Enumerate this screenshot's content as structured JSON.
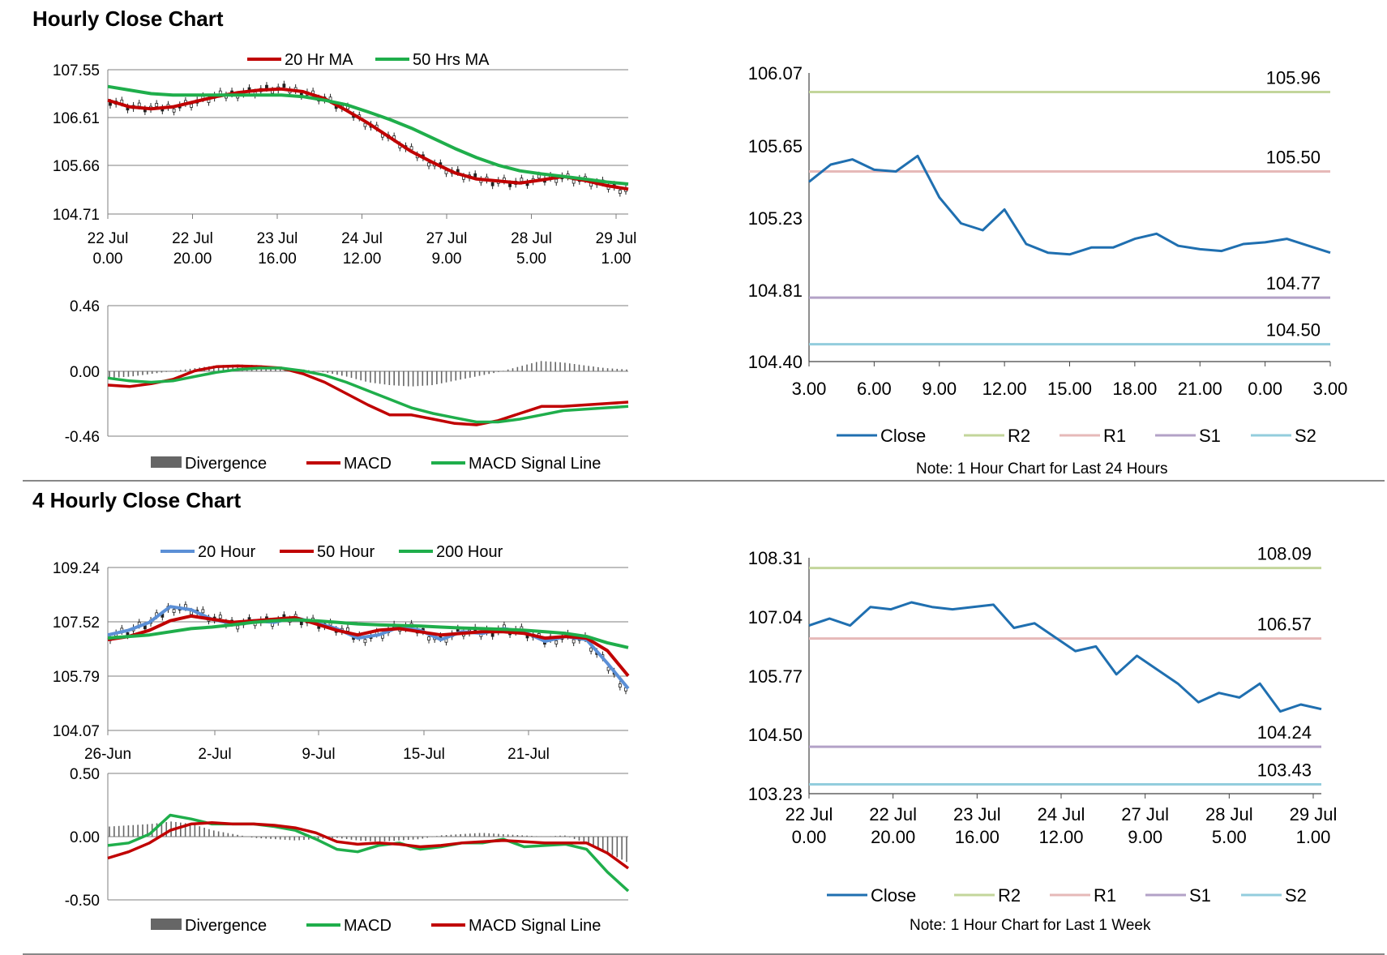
{
  "sections": {
    "hourly_title": "Hourly Close Chart",
    "four_hourly_title": "4 Hourly Close Chart"
  },
  "colors": {
    "red": "#c00000",
    "green": "#1fae4b",
    "blue": "#1f6fb0",
    "steel": "#5b8fd6",
    "r2": "#c3d69b",
    "r1": "#e6b9b8",
    "s1": "#b3a2c7",
    "s2": "#93cddd",
    "grid": "#7f7f7f",
    "bar": "#666666"
  },
  "chart_data": [
    {
      "id": "h_price",
      "type": "line",
      "title": "Hourly Close Chart",
      "legend": [
        "20 Hr MA",
        "50 Hrs MA"
      ],
      "yticks": [
        "107.55",
        "106.61",
        "105.66",
        "104.71"
      ],
      "ylim": [
        104.71,
        107.55
      ],
      "xticks": [
        [
          "22 Jul",
          "0.00"
        ],
        [
          "22 Jul",
          "20.00"
        ],
        [
          "23 Jul",
          "16.00"
        ],
        [
          "24 Jul",
          "12.00"
        ],
        [
          "27 Jul",
          "9.00"
        ],
        [
          "28 Jul",
          "5.00"
        ],
        [
          "29 Jul",
          "1.00"
        ]
      ],
      "series": [
        {
          "name": "20 Hr MA",
          "values": [
            106.95,
            106.82,
            106.78,
            106.82,
            106.92,
            107.02,
            107.1,
            107.15,
            107.17,
            107.12,
            106.98,
            106.75,
            106.5,
            106.22,
            105.94,
            105.72,
            105.52,
            105.4,
            105.36,
            105.32,
            105.38,
            105.45,
            105.37,
            105.27,
            105.2
          ]
        },
        {
          "name": "50 Hrs MA",
          "values": [
            107.22,
            107.15,
            107.08,
            107.05,
            107.05,
            107.05,
            107.05,
            107.05,
            107.05,
            107.02,
            106.95,
            106.86,
            106.72,
            106.57,
            106.4,
            106.2,
            106.0,
            105.82,
            105.67,
            105.56,
            105.5,
            105.45,
            105.4,
            105.34,
            105.3
          ]
        }
      ]
    },
    {
      "id": "h_macd",
      "type": "bar",
      "yticks": [
        "0.46",
        "0.00",
        "-0.46"
      ],
      "ylim": [
        -0.46,
        0.46
      ],
      "legend": [
        "Divergence",
        "MACD",
        "MACD Signal Line"
      ],
      "series": [
        {
          "name": "Divergence",
          "values": [
            -0.05,
            -0.04,
            -0.02,
            0.0,
            0.02,
            0.04,
            0.045,
            0.04,
            0.02,
            0.01,
            -0.01,
            -0.04,
            -0.08,
            -0.1,
            -0.11,
            -0.1,
            -0.07,
            -0.04,
            -0.01,
            0.03,
            0.07,
            0.06,
            0.04,
            0.02,
            0.01
          ]
        },
        {
          "name": "MACD",
          "values": [
            -0.1,
            -0.11,
            -0.09,
            -0.06,
            0.0,
            0.03,
            0.035,
            0.03,
            0.02,
            -0.02,
            -0.08,
            -0.16,
            -0.24,
            -0.31,
            -0.31,
            -0.34,
            -0.37,
            -0.38,
            -0.35,
            -0.3,
            -0.25,
            -0.25,
            -0.24,
            -0.23,
            -0.22
          ]
        },
        {
          "name": "MACD Signal Line",
          "values": [
            -0.05,
            -0.07,
            -0.08,
            -0.07,
            -0.04,
            -0.01,
            0.01,
            0.02,
            0.02,
            0.0,
            -0.03,
            -0.08,
            -0.14,
            -0.2,
            -0.26,
            -0.3,
            -0.33,
            -0.36,
            -0.36,
            -0.34,
            -0.31,
            -0.28,
            -0.27,
            -0.26,
            -0.25
          ]
        }
      ]
    },
    {
      "id": "h_levels",
      "type": "line",
      "yticks": [
        "106.07",
        "105.65",
        "105.23",
        "104.81",
        "104.40"
      ],
      "ylim": [
        104.4,
        106.07
      ],
      "xticks": [
        "3.00",
        "6.00",
        "9.00",
        "12.00",
        "15.00",
        "18.00",
        "21.00",
        "0.00",
        "3.00"
      ],
      "legend": [
        "Close",
        "R2",
        "R1",
        "S1",
        "S2"
      ],
      "levels": [
        {
          "name": "R2",
          "value": 105.96,
          "label": "105.96"
        },
        {
          "name": "R1",
          "value": 105.5,
          "label": "105.50"
        },
        {
          "name": "S1",
          "value": 104.77,
          "label": "104.77"
        },
        {
          "name": "S2",
          "value": 104.5,
          "label": "104.50"
        }
      ],
      "series": [
        {
          "name": "Close",
          "values": [
            105.44,
            105.54,
            105.57,
            105.51,
            105.5,
            105.59,
            105.35,
            105.2,
            105.16,
            105.28,
            105.08,
            105.03,
            105.02,
            105.06,
            105.06,
            105.11,
            105.14,
            105.07,
            105.05,
            105.04,
            105.08,
            105.09,
            105.11,
            105.07,
            105.03
          ]
        }
      ],
      "note": "Note: 1 Hour Chart for Last 24 Hours"
    },
    {
      "id": "f_price",
      "type": "line",
      "title": "4 Hourly Close Chart",
      "legend": [
        "20 Hour",
        "50 Hour",
        "200 Hour"
      ],
      "yticks": [
        "109.24",
        "107.52",
        "105.79",
        "104.07"
      ],
      "ylim": [
        104.07,
        109.24
      ],
      "xticks": [
        "26-Jun",
        "2-Jul",
        "9-Jul",
        "15-Jul",
        "21-Jul"
      ],
      "series": [
        {
          "name": "20 Hour",
          "values": [
            107.1,
            107.25,
            107.5,
            108.0,
            107.9,
            107.6,
            107.45,
            107.55,
            107.5,
            107.65,
            107.48,
            107.3,
            107.0,
            107.1,
            107.35,
            107.25,
            106.95,
            107.2,
            107.15,
            107.3,
            107.2,
            106.9,
            107.05,
            106.95,
            106.2,
            105.4
          ]
        },
        {
          "name": "50 Hour",
          "values": [
            106.95,
            107.05,
            107.25,
            107.55,
            107.7,
            107.6,
            107.5,
            107.55,
            107.6,
            107.65,
            107.45,
            107.25,
            107.1,
            107.25,
            107.3,
            107.2,
            107.1,
            107.15,
            107.2,
            107.2,
            107.15,
            107.0,
            107.05,
            107.0,
            106.6,
            105.8
          ]
        },
        {
          "name": "200 Hour",
          "values": [
            107.0,
            107.05,
            107.1,
            107.2,
            107.3,
            107.35,
            107.42,
            107.5,
            107.55,
            107.58,
            107.55,
            107.5,
            107.45,
            107.42,
            107.4,
            107.38,
            107.35,
            107.32,
            107.3,
            107.28,
            107.25,
            107.2,
            107.15,
            107.05,
            106.85,
            106.7
          ]
        }
      ]
    },
    {
      "id": "f_macd",
      "type": "bar",
      "yticks": [
        "0.50",
        "0.00",
        "-0.50"
      ],
      "ylim": [
        -0.5,
        0.5
      ],
      "legend": [
        "Divergence",
        "MACD",
        "MACD Signal Line"
      ],
      "series": [
        {
          "name": "Divergence",
          "values": [
            0.08,
            0.09,
            0.1,
            0.12,
            0.1,
            0.05,
            0.02,
            -0.01,
            -0.02,
            -0.03,
            -0.02,
            -0.01,
            -0.03,
            -0.04,
            -0.03,
            -0.02,
            0.01,
            0.02,
            0.03,
            0.02,
            0.01,
            0.0,
            0.01,
            -0.05,
            -0.12,
            -0.2
          ]
        },
        {
          "name": "MACD",
          "values": [
            -0.07,
            -0.05,
            0.02,
            0.17,
            0.14,
            0.1,
            0.1,
            0.1,
            0.08,
            0.05,
            -0.02,
            -0.1,
            -0.12,
            -0.07,
            -0.05,
            -0.1,
            -0.08,
            -0.05,
            -0.05,
            -0.02,
            -0.08,
            -0.07,
            -0.06,
            -0.1,
            -0.28,
            -0.43
          ]
        },
        {
          "name": "MACD Signal Line",
          "values": [
            -0.17,
            -0.12,
            -0.05,
            0.05,
            0.1,
            0.11,
            0.1,
            0.1,
            0.09,
            0.07,
            0.03,
            -0.04,
            -0.06,
            -0.05,
            -0.06,
            -0.08,
            -0.07,
            -0.05,
            -0.04,
            -0.03,
            -0.04,
            -0.05,
            -0.05,
            -0.05,
            -0.13,
            -0.25
          ]
        }
      ]
    },
    {
      "id": "f_levels",
      "type": "line",
      "yticks": [
        "108.31",
        "107.04",
        "105.77",
        "104.50",
        "103.23"
      ],
      "ylim": [
        103.23,
        108.31
      ],
      "xticks": [
        [
          "22 Jul",
          "0.00"
        ],
        [
          "22 Jul",
          "20.00"
        ],
        [
          "23 Jul",
          "16.00"
        ],
        [
          "24 Jul",
          "12.00"
        ],
        [
          "27 Jul",
          "9.00"
        ],
        [
          "28 Jul",
          "5.00"
        ],
        [
          "29 Jul",
          "1.00"
        ]
      ],
      "legend": [
        "Close",
        "R2",
        "R1",
        "S1",
        "S2"
      ],
      "levels": [
        {
          "name": "R2",
          "value": 108.09,
          "label": "108.09"
        },
        {
          "name": "R1",
          "value": 106.57,
          "label": "106.57"
        },
        {
          "name": "S1",
          "value": 104.24,
          "label": "104.24"
        },
        {
          "name": "S2",
          "value": 103.43,
          "label": "103.43"
        }
      ],
      "series": [
        {
          "name": "Close",
          "values": [
            106.85,
            107.0,
            106.85,
            107.25,
            107.2,
            107.35,
            107.25,
            107.2,
            107.25,
            107.3,
            106.8,
            106.9,
            106.6,
            106.3,
            106.4,
            105.8,
            106.2,
            105.9,
            105.6,
            105.2,
            105.4,
            105.3,
            105.6,
            105.0,
            105.15,
            105.05
          ]
        }
      ],
      "note": "Note: 1 Hour Chart for Last 1 Week"
    }
  ]
}
